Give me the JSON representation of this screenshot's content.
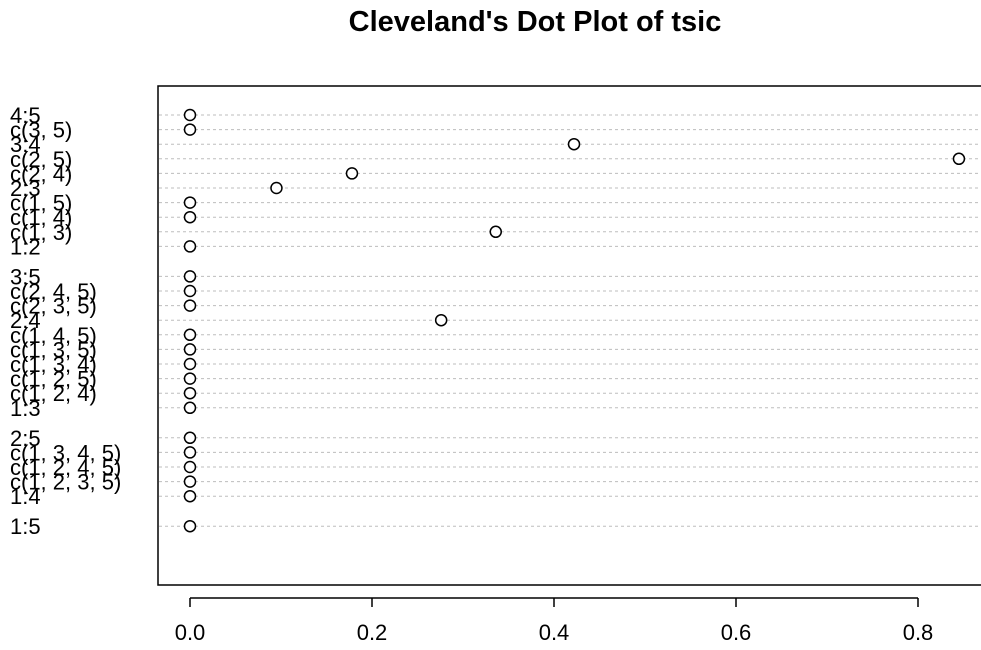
{
  "chart_data": {
    "type": "scatter",
    "subtype": "cleveland-dotplot",
    "title": "Cleveland's Dot Plot of tsic",
    "xlabel": "",
    "ylabel": "",
    "xlim": [
      -0.04,
      0.87
    ],
    "x_ticks": [
      "0.0",
      "0.2",
      "0.4",
      "0.6",
      "0.8"
    ],
    "grid": "dashed horizontal lines at each row",
    "marker": "open circle",
    "groups": [
      {
        "rows": [
          {
            "label": "4:5",
            "value": 0.0
          },
          {
            "label": "c(3, 5)",
            "value": 0.0
          },
          {
            "label": "3:4",
            "value": 0.422
          },
          {
            "label": "c(2, 5)",
            "value": 0.845
          },
          {
            "label": "c(2, 4)",
            "value": 0.178
          },
          {
            "label": "2:3",
            "value": 0.095
          },
          {
            "label": "c(1, 5)",
            "value": 0.0
          },
          {
            "label": "c(1, 4)",
            "value": 0.0
          },
          {
            "label": "c(1, 3)",
            "value": 0.336
          },
          {
            "label": "1:2",
            "value": 0.0
          }
        ]
      },
      {
        "rows": [
          {
            "label": "3:5",
            "value": 0.0
          },
          {
            "label": "c(2, 4, 5)",
            "value": 0.0
          },
          {
            "label": "c(2, 3, 5)",
            "value": 0.0
          },
          {
            "label": "2:4",
            "value": 0.276
          },
          {
            "label": "c(1, 4, 5)",
            "value": 0.0
          },
          {
            "label": "c(1, 3, 5)",
            "value": 0.0
          },
          {
            "label": "c(1, 3, 4)",
            "value": 0.0
          },
          {
            "label": "c(1, 2, 5)",
            "value": 0.0
          },
          {
            "label": "c(1, 2, 4)",
            "value": 0.0
          },
          {
            "label": "1:3",
            "value": 0.0
          }
        ]
      },
      {
        "rows": [
          {
            "label": "2:5",
            "value": 0.0
          },
          {
            "label": "c(1, 3, 4, 5)",
            "value": 0.0
          },
          {
            "label": "c(1, 2, 4, 5)",
            "value": 0.0
          },
          {
            "label": "c(1, 2, 3, 5)",
            "value": 0.0
          },
          {
            "label": "1:4",
            "value": 0.0
          }
        ]
      },
      {
        "rows": [
          {
            "label": "1:5",
            "value": 0.0
          }
        ]
      }
    ]
  }
}
